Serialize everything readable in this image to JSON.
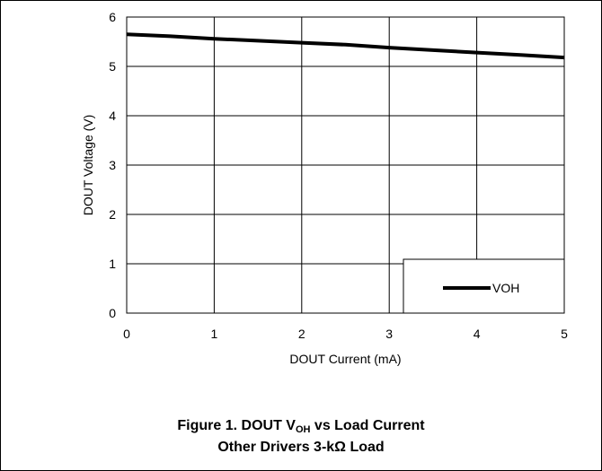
{
  "chart_data": {
    "type": "line",
    "xlabel": "DOUT Current (mA)",
    "ylabel": "DOUT Voltage (V)",
    "xlim": [
      0,
      5
    ],
    "ylim": [
      0,
      6
    ],
    "xticks": [
      "0",
      "1",
      "2",
      "3",
      "4",
      "5"
    ],
    "yticks": [
      "0",
      "1",
      "2",
      "3",
      "4",
      "5",
      "6"
    ],
    "grid": true,
    "legend_position": "bottom-right",
    "series": [
      {
        "name": "VOH",
        "color": "#000000",
        "x": [
          0,
          0.5,
          1,
          1.5,
          2,
          2.5,
          3,
          3.5,
          4,
          4.5,
          5
        ],
        "y": [
          5.65,
          5.61,
          5.56,
          5.52,
          5.48,
          5.44,
          5.38,
          5.33,
          5.28,
          5.23,
          5.18
        ]
      }
    ]
  },
  "caption": {
    "line1_pre": "Figure 1. DOUT V",
    "line1_sub": "OH",
    "line1_post": " vs Load Current",
    "line2": "Other Drivers 3-kΩ Load"
  }
}
